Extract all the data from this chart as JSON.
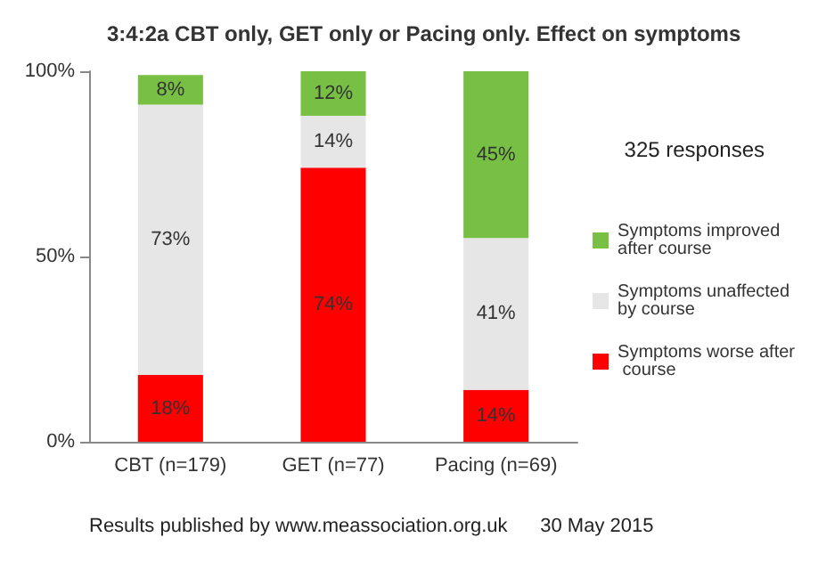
{
  "chart_data": {
    "type": "bar",
    "stacked": true,
    "title": "3:4:2a CBT only, GET only or Pacing only. Effect on symptoms",
    "categories": [
      "CBT (n=179)",
      "GET (n=77)",
      "Pacing (n=69)"
    ],
    "series": [
      {
        "name": "Symptoms worse after course",
        "color": "#ff0000",
        "values": [
          18,
          74,
          14
        ],
        "value_labels": [
          "18%",
          "74%",
          "14%"
        ]
      },
      {
        "name": "Symptoms unaffected by course",
        "color": "#e6e6e6",
        "values": [
          73,
          14,
          41
        ],
        "value_labels": [
          "73%",
          "14%",
          "41%"
        ]
      },
      {
        "name": "Symptoms improved after course",
        "color": "#77c043",
        "values": [
          8,
          12,
          45
        ],
        "value_labels": [
          "8%",
          "12%",
          "45%"
        ]
      }
    ],
    "ylim": [
      0,
      100
    ],
    "yticks": [
      {
        "value": 0,
        "label": "0%"
      },
      {
        "value": 50,
        "label": "50%"
      },
      {
        "value": 100,
        "label": "100%"
      }
    ],
    "grid": false,
    "legend": "right",
    "annotations": [
      "325 responses",
      "Results published by www.meassociation.org.uk      30 May 2015"
    ]
  }
}
